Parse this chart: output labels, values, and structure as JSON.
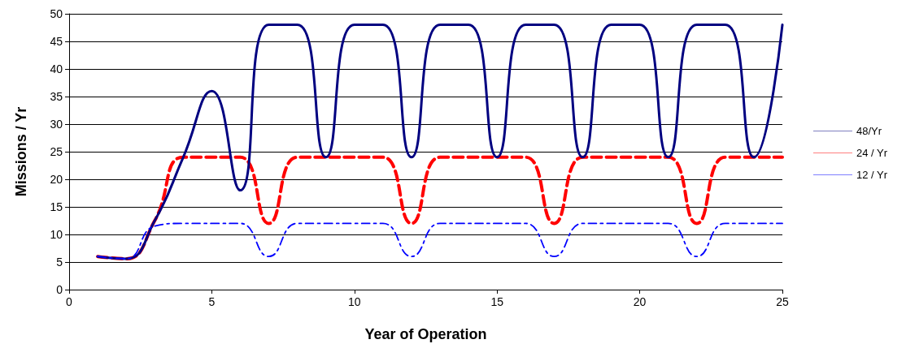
{
  "chart_data": {
    "type": "line",
    "xlabel": "Year of Operation",
    "ylabel": "Missions / Yr",
    "x": [
      1,
      2,
      3,
      4,
      5,
      6,
      7,
      8,
      9,
      10,
      11,
      12,
      13,
      14,
      15,
      16,
      17,
      18,
      19,
      20,
      21,
      22,
      23,
      24,
      25
    ],
    "series": [
      {
        "name": "48/Yr",
        "color": "#000080",
        "line_style": "solid",
        "values": [
          6,
          5.6,
          12.5,
          24,
          36,
          18,
          48,
          48,
          24,
          48,
          48,
          24,
          48,
          48,
          24,
          48,
          48,
          24,
          48,
          48,
          24,
          48,
          48,
          24,
          48
        ]
      },
      {
        "name": "24 / Yr",
        "color": "#ff0000",
        "line_style": "dashed",
        "values": [
          6,
          5.6,
          12.5,
          24,
          24,
          24,
          12,
          24,
          24,
          24,
          24,
          12,
          24,
          24,
          24,
          24,
          12,
          24,
          24,
          24,
          24,
          12,
          24,
          24,
          24
        ]
      },
      {
        "name": "12 / Yr",
        "color": "#0000ff",
        "line_style": "dashdot",
        "values": [
          6,
          5.6,
          11.5,
          12,
          12,
          12,
          6,
          12,
          12,
          12,
          12,
          6,
          12,
          12,
          12,
          12,
          6,
          12,
          12,
          12,
          12,
          6,
          12,
          12,
          12
        ]
      }
    ],
    "xlim": [
      0,
      25
    ],
    "xticks": [
      0,
      5,
      10,
      15,
      20,
      25
    ],
    "ylim": [
      0,
      50
    ],
    "yticks": [
      0,
      5,
      10,
      15,
      20,
      25,
      30,
      35,
      40,
      45,
      50
    ],
    "grid": "y",
    "legend": "right",
    "marker": "none"
  }
}
